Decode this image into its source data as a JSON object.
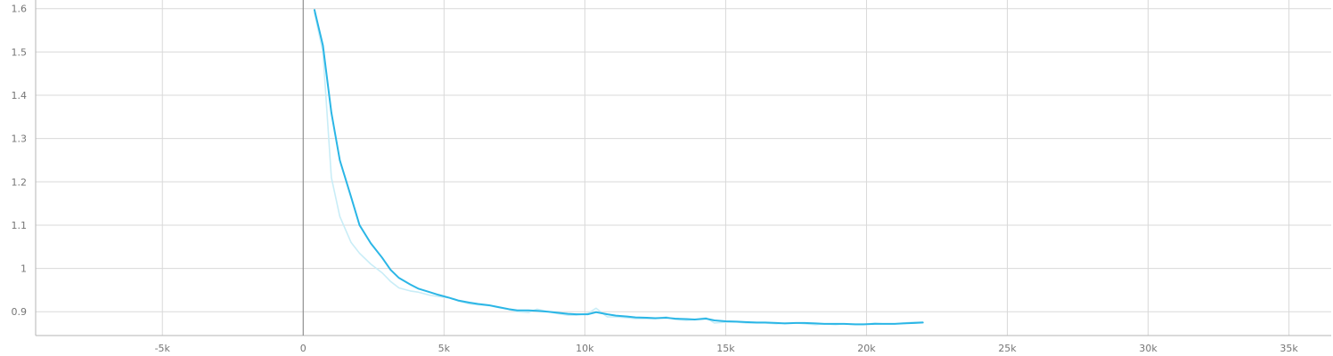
{
  "chart_data": {
    "type": "line",
    "title": "",
    "xlabel": "",
    "ylabel": "",
    "xlim": [
      -9500,
      36500
    ],
    "ylim": [
      0.845,
      1.62
    ],
    "grid": true,
    "x_ticks": [
      -5000,
      0,
      5000,
      10000,
      15000,
      20000,
      25000,
      30000,
      35000
    ],
    "x_tick_labels": [
      "-5k",
      "0",
      "5k",
      "10k",
      "15k",
      "20k",
      "25k",
      "30k",
      "35k"
    ],
    "y_ticks": [
      0.9,
      1.0,
      1.1,
      1.2,
      1.3,
      1.4,
      1.5,
      1.6
    ],
    "y_tick_labels": [
      "0.9",
      "1",
      "1.1",
      "1.2",
      "1.3",
      "1.4",
      "1.5",
      "1.6"
    ],
    "series": [
      {
        "role": "raw",
        "color": "#c9edf7",
        "x": [
          400,
          700,
          1000,
          1300,
          1700,
          2000,
          2400,
          2800,
          3100,
          3400,
          3800,
          4100,
          4500,
          4800,
          5200,
          5500,
          5900,
          6200,
          6600,
          6900,
          7300,
          7600,
          8000,
          8300,
          8700,
          9000,
          9400,
          9700,
          10100,
          10400,
          10800,
          11100,
          11500,
          11800,
          12200,
          12500,
          12900,
          13200,
          13600,
          13900,
          14300,
          14600,
          15000,
          15400,
          15700,
          16100,
          16400,
          16800,
          17100,
          17500,
          17800,
          18200,
          18500,
          18900,
          19200,
          19600,
          19900,
          20300,
          20600,
          21000,
          21300,
          21700,
          22000
        ],
        "y": [
          1.59,
          1.5,
          1.21,
          1.12,
          1.06,
          1.035,
          1.01,
          0.99,
          0.97,
          0.955,
          0.948,
          0.945,
          0.938,
          0.935,
          0.932,
          0.925,
          0.918,
          0.916,
          0.914,
          0.91,
          0.905,
          0.9,
          0.898,
          0.906,
          0.9,
          0.896,
          0.892,
          0.892,
          0.896,
          0.908,
          0.888,
          0.888,
          0.886,
          0.884,
          0.884,
          0.884,
          0.888,
          0.882,
          0.88,
          0.882,
          0.886,
          0.874,
          0.876,
          0.876,
          0.874,
          0.874,
          0.874,
          0.872,
          0.874,
          0.874,
          0.872,
          0.87,
          0.872,
          0.87,
          0.872,
          0.87,
          0.87,
          0.874,
          0.872,
          0.872,
          0.874,
          0.876,
          0.876
        ]
      },
      {
        "role": "smoothed",
        "color": "#2bb6e6",
        "x": [
          400,
          700,
          1000,
          1300,
          1700,
          2000,
          2400,
          2800,
          3100,
          3400,
          3800,
          4100,
          4500,
          4800,
          5200,
          5500,
          5900,
          6200,
          6600,
          6900,
          7300,
          7600,
          8000,
          8300,
          8700,
          9000,
          9400,
          9700,
          10100,
          10400,
          10800,
          11100,
          11500,
          11800,
          12200,
          12500,
          12900,
          13200,
          13600,
          13900,
          14300,
          14600,
          15000,
          15400,
          15700,
          16100,
          16400,
          16800,
          17100,
          17500,
          17800,
          18200,
          18500,
          18900,
          19200,
          19600,
          19900,
          20300,
          20600,
          21000,
          21300,
          21700,
          22000
        ],
        "y": [
          1.597,
          1.515,
          1.36,
          1.25,
          1.165,
          1.1,
          1.058,
          1.025,
          0.997,
          0.978,
          0.963,
          0.953,
          0.945,
          0.939,
          0.932,
          0.926,
          0.921,
          0.918,
          0.915,
          0.911,
          0.906,
          0.903,
          0.903,
          0.902,
          0.9,
          0.898,
          0.895,
          0.894,
          0.894,
          0.899,
          0.894,
          0.891,
          0.889,
          0.887,
          0.886,
          0.885,
          0.886,
          0.884,
          0.883,
          0.882,
          0.884,
          0.88,
          0.878,
          0.877,
          0.876,
          0.875,
          0.875,
          0.874,
          0.873,
          0.874,
          0.874,
          0.873,
          0.872,
          0.872,
          0.872,
          0.871,
          0.871,
          0.872,
          0.872,
          0.872,
          0.873,
          0.874,
          0.875
        ]
      }
    ]
  }
}
